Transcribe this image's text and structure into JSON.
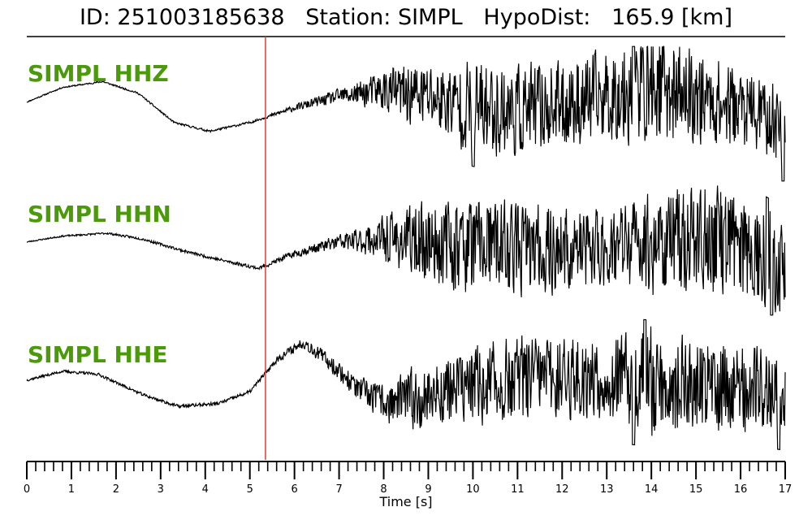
{
  "header": {
    "title": "ID: 251003185638   Station: SIMPL   HypoDist:   165.9 [km]"
  },
  "colors": {
    "channel_label": "#4a9a0a",
    "pick_line": "#e53935",
    "trace": "#000000"
  },
  "chart_data": {
    "type": "line",
    "title": "ID: 251003185638   Station: SIMPL   HypoDist:   165.9 [km]",
    "xlabel": "Time [s]",
    "ylabel": "",
    "xlim": [
      0,
      17
    ],
    "x_ticks": [
      "0",
      "1",
      "2",
      "3",
      "4",
      "5",
      "6",
      "7",
      "8",
      "9",
      "10",
      "11",
      "12",
      "13",
      "14",
      "15",
      "16",
      "17"
    ],
    "minor_tick_step": 0.2,
    "pick_time": 5.35,
    "grid": false,
    "series": [
      {
        "name": "SIMPL HHZ",
        "baseline": [
          [
            0,
            0.2
          ],
          [
            0.8,
            0.45
          ],
          [
            1.7,
            0.55
          ],
          [
            2.5,
            0.35
          ],
          [
            3.3,
            -0.15
          ],
          [
            4.1,
            -0.3
          ],
          [
            5.0,
            -0.15
          ],
          [
            6.0,
            0.1
          ],
          [
            7.0,
            0.3
          ],
          [
            8.0,
            0.4
          ],
          [
            9.0,
            0.3
          ],
          [
            10.0,
            0.1
          ],
          [
            11.0,
            0.05
          ],
          [
            12.0,
            0.15
          ],
          [
            13.0,
            0.3
          ],
          [
            14.0,
            0.45
          ],
          [
            15.0,
            0.3
          ],
          [
            16.0,
            0.1
          ],
          [
            17.0,
            -0.2
          ]
        ],
        "noise": [
          [
            0,
            0.01
          ],
          [
            5.3,
            0.02
          ],
          [
            6.0,
            0.05
          ],
          [
            7.0,
            0.12
          ],
          [
            7.8,
            0.28
          ],
          [
            8.5,
            0.5
          ],
          [
            9.5,
            0.6
          ],
          [
            10.0,
            0.8
          ],
          [
            11.0,
            0.75
          ],
          [
            12.0,
            0.7
          ],
          [
            13.0,
            0.75
          ],
          [
            14.0,
            0.9
          ],
          [
            15.0,
            0.75
          ],
          [
            16.0,
            0.65
          ],
          [
            17.0,
            0.6
          ]
        ],
        "peaks": [
          [
            10.0,
            -1.0
          ],
          [
            13.6,
            1.1
          ],
          [
            16.95,
            -1.0
          ]
        ],
        "seed": 11
      },
      {
        "name": "SIMPL HHN",
        "baseline": [
          [
            0,
            0.1
          ],
          [
            0.8,
            0.2
          ],
          [
            1.8,
            0.25
          ],
          [
            2.6,
            0.15
          ],
          [
            3.5,
            -0.05
          ],
          [
            4.3,
            -0.2
          ],
          [
            5.2,
            -0.35
          ],
          [
            6.0,
            -0.1
          ],
          [
            7.0,
            0.1
          ],
          [
            8.0,
            0.15
          ],
          [
            9.0,
            0.1
          ],
          [
            10.0,
            0.05
          ],
          [
            11.0,
            0.0
          ],
          [
            12.0,
            -0.05
          ],
          [
            13.0,
            0.0
          ],
          [
            14.0,
            0.1
          ],
          [
            15.0,
            0.15
          ],
          [
            16.0,
            0.1
          ],
          [
            17.0,
            -0.3
          ]
        ],
        "noise": [
          [
            0,
            0.01
          ],
          [
            5.3,
            0.03
          ],
          [
            6.5,
            0.08
          ],
          [
            7.5,
            0.2
          ],
          [
            8.2,
            0.45
          ],
          [
            9.0,
            0.65
          ],
          [
            10.0,
            0.8
          ],
          [
            11.0,
            0.75
          ],
          [
            12.0,
            0.7
          ],
          [
            13.0,
            0.65
          ],
          [
            14.0,
            0.85
          ],
          [
            15.0,
            0.85
          ],
          [
            16.0,
            0.9
          ],
          [
            17.0,
            0.8
          ]
        ],
        "peaks": [
          [
            16.7,
            -1.1
          ],
          [
            16.6,
            1.0
          ]
        ],
        "seed": 23
      },
      {
        "name": "SIMPL HHE",
        "baseline": [
          [
            0,
            0.1
          ],
          [
            0.8,
            0.25
          ],
          [
            1.6,
            0.2
          ],
          [
            2.6,
            -0.15
          ],
          [
            3.4,
            -0.35
          ],
          [
            4.3,
            -0.3
          ],
          [
            5.0,
            -0.1
          ],
          [
            5.6,
            0.45
          ],
          [
            6.2,
            0.75
          ],
          [
            6.8,
            0.4
          ],
          [
            7.5,
            -0.1
          ],
          [
            8.1,
            -0.3
          ],
          [
            8.8,
            -0.2
          ],
          [
            9.5,
            -0.05
          ],
          [
            10.5,
            0.05
          ],
          [
            11.5,
            0.15
          ],
          [
            12.5,
            0.15
          ],
          [
            13.5,
            0.1
          ],
          [
            14.5,
            0.05
          ],
          [
            15.5,
            0.0
          ],
          [
            16.5,
            -0.05
          ],
          [
            17.0,
            -0.1
          ]
        ],
        "noise": [
          [
            0,
            0.02
          ],
          [
            5.3,
            0.03
          ],
          [
            6.0,
            0.08
          ],
          [
            7.0,
            0.15
          ],
          [
            8.0,
            0.3
          ],
          [
            8.6,
            0.5
          ],
          [
            9.5,
            0.55
          ],
          [
            10.0,
            0.65
          ],
          [
            11.0,
            0.7
          ],
          [
            12.0,
            0.65
          ],
          [
            13.0,
            0.7
          ],
          [
            14.0,
            0.9
          ],
          [
            15.0,
            0.75
          ],
          [
            16.0,
            0.7
          ],
          [
            17.0,
            0.65
          ]
        ],
        "peaks": [
          [
            13.6,
            -1.1
          ],
          [
            13.85,
            1.05
          ],
          [
            16.85,
            -1.0
          ]
        ],
        "seed": 37
      }
    ]
  }
}
